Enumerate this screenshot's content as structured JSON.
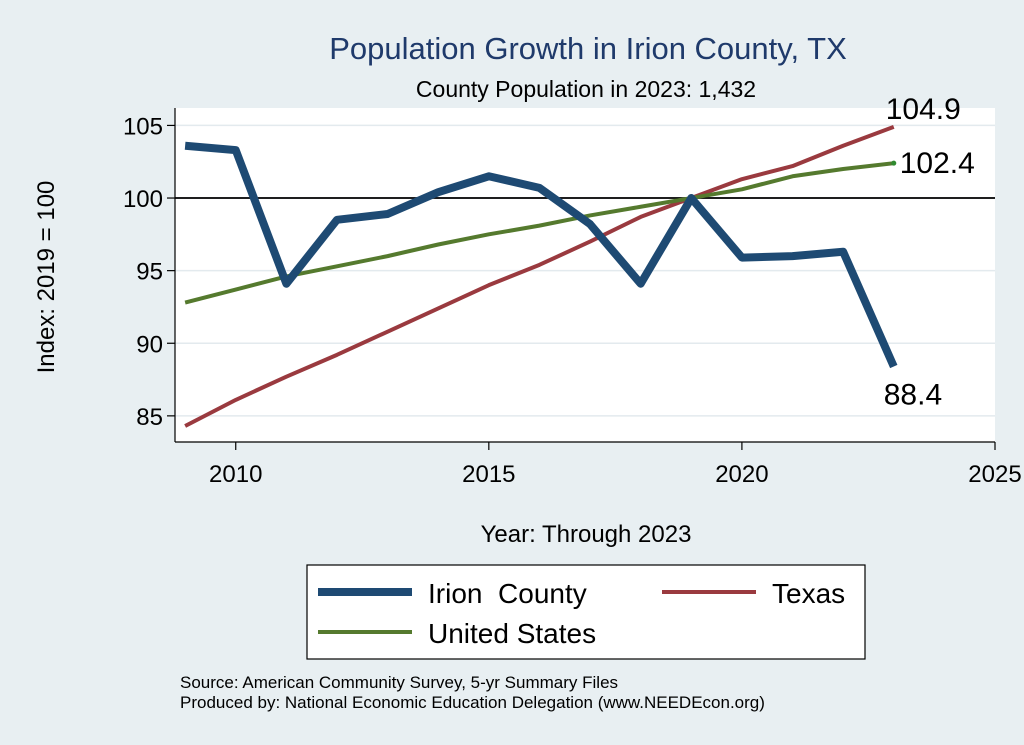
{
  "chart_data": {
    "type": "line",
    "title": "Population Growth in Irion County, TX",
    "subtitle": "County Population in 2023: 1,432",
    "xlabel": "Year: Through 2023",
    "ylabel": "Index: 2019 = 100",
    "xlim": [
      2008.8,
      2025
    ],
    "ylim": [
      83.2,
      106.2
    ],
    "xticks": [
      "2010",
      "2015",
      "2020",
      "2025"
    ],
    "yticks": [
      "85",
      "90",
      "95",
      "100",
      "105"
    ],
    "reference_line": 100,
    "x": [
      2009,
      2010,
      2011,
      2012,
      2013,
      2014,
      2015,
      2016,
      2017,
      2018,
      2019,
      2020,
      2021,
      2022,
      2023
    ],
    "series": [
      {
        "name": "Texas",
        "color": "#9a3a3f",
        "values": [
          84.3,
          86.1,
          87.7,
          89.2,
          90.8,
          92.4,
          94.0,
          95.4,
          97.0,
          98.7,
          100.0,
          101.3,
          102.2,
          103.6,
          104.9
        ],
        "end_label": "104.9"
      },
      {
        "name": "United States",
        "color": "#557a2e",
        "values": [
          92.8,
          93.7,
          94.6,
          95.3,
          96.0,
          96.8,
          97.5,
          98.1,
          98.8,
          99.4,
          100.0,
          100.6,
          101.5,
          102.0,
          102.4
        ],
        "end_label": "102.4"
      },
      {
        "name": "Irion  County",
        "color": "#1e4a73",
        "values": [
          103.6,
          103.3,
          94.1,
          98.5,
          98.9,
          100.4,
          101.5,
          100.7,
          98.2,
          94.1,
          100.0,
          95.9,
          96.0,
          96.3,
          88.4
        ],
        "end_label": "88.4"
      }
    ],
    "legend": [
      {
        "label": "Irion  County",
        "color": "#1e4a73"
      },
      {
        "label": "Texas",
        "color": "#9a3a3f"
      },
      {
        "label": "United States",
        "color": "#557a2e"
      }
    ],
    "legend_position": "bottom"
  },
  "source": {
    "line1": "Source: American Community Survey, 5-yr Summary Files",
    "line2": "Produced by: National Economic Education Delegation (www.NEEDEcon.org)"
  },
  "colors": {
    "background": "#e8eff2",
    "plot_background": "#ffffff",
    "title": "#1f3a6b"
  }
}
